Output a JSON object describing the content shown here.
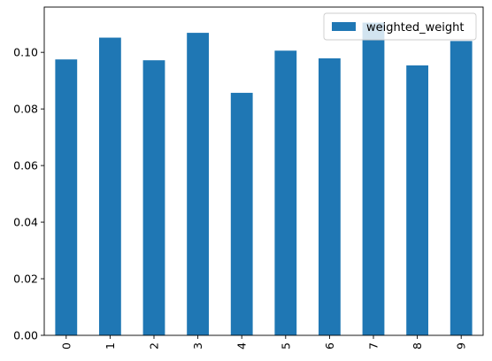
{
  "chart_data": {
    "type": "bar",
    "categories": [
      "0",
      "1",
      "2",
      "3",
      "4",
      "5",
      "6",
      "7",
      "8",
      "9"
    ],
    "series": [
      {
        "name": "weighted_weight",
        "values": [
          0.0975,
          0.1052,
          0.0972,
          0.1069,
          0.0857,
          0.1006,
          0.0979,
          0.1105,
          0.0954,
          0.104
        ],
        "color": "#1f77b4"
      }
    ],
    "y_ticks": [
      "0.00",
      "0.02",
      "0.04",
      "0.06",
      "0.08",
      "0.10"
    ],
    "ylim": [
      0,
      0.116
    ],
    "legend_position": "top-right",
    "grid": false
  }
}
